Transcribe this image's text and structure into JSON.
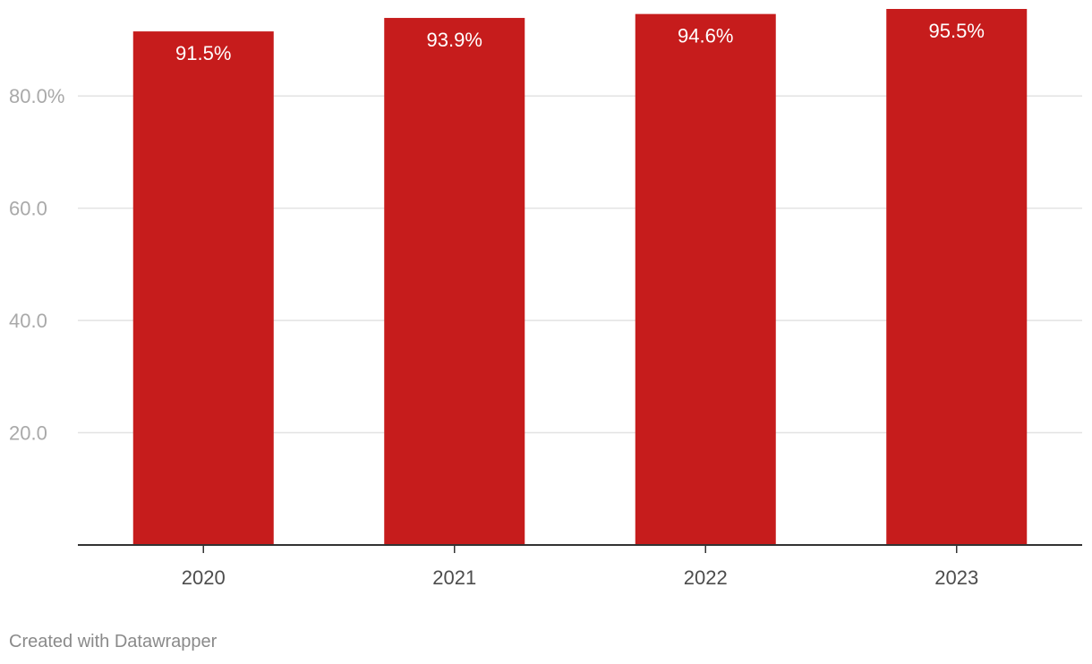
{
  "chart_data": {
    "type": "bar",
    "categories": [
      "2020",
      "2021",
      "2022",
      "2023"
    ],
    "values": [
      91.5,
      93.9,
      94.6,
      95.5
    ],
    "data_labels": [
      "91.5%",
      "93.9%",
      "94.6%",
      "95.5%"
    ],
    "y_ticks": [
      {
        "value": 20,
        "label": "20.0"
      },
      {
        "value": 40,
        "label": "40.0"
      },
      {
        "value": 60,
        "label": "60.0"
      },
      {
        "value": 80,
        "label": "80.0%"
      }
    ],
    "ylim": [
      0,
      95.5
    ],
    "grid": true,
    "bar_color": "#c61c1c",
    "title": "",
    "xlabel": "",
    "ylabel": ""
  },
  "footer": {
    "credit": "Created with Datawrapper"
  }
}
